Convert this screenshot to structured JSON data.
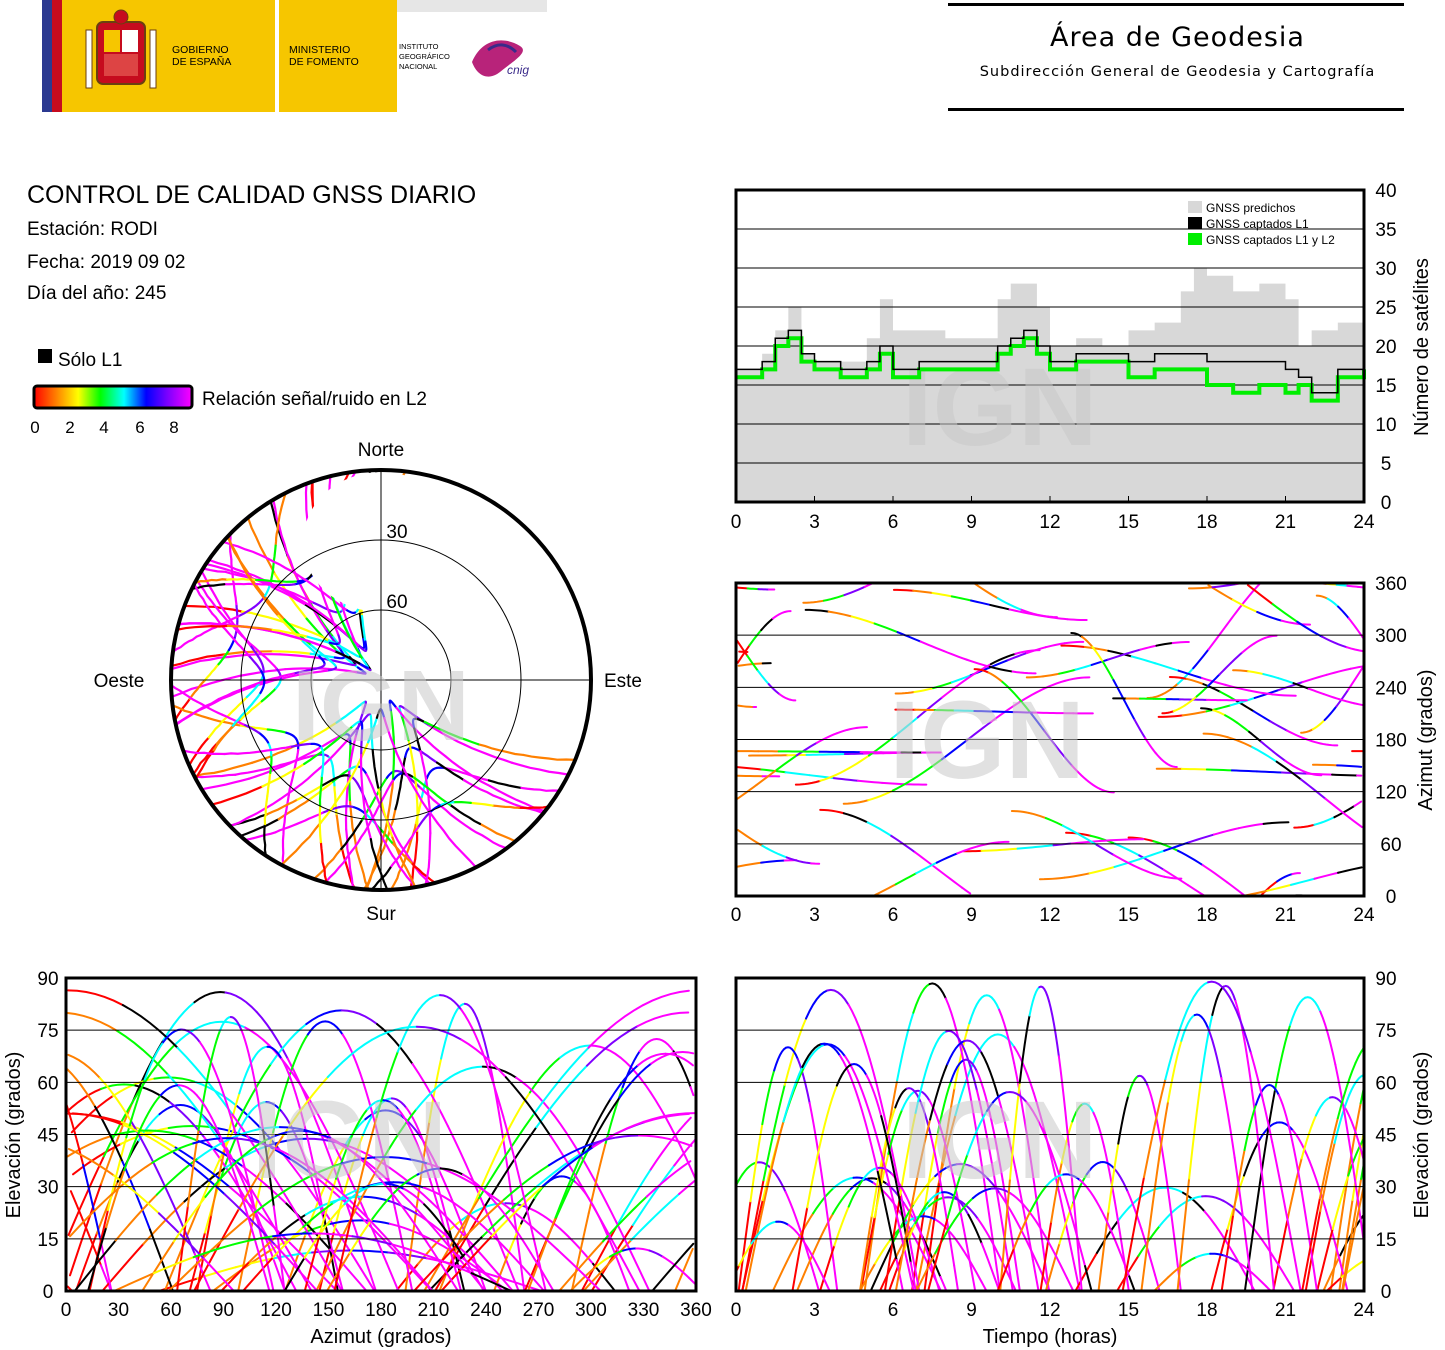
{
  "header": {
    "gobierno": [
      "GOBIERNO",
      "DE ESPAÑA"
    ],
    "ministerio": [
      "MINISTERIO",
      "DE FOMENTO"
    ],
    "instituto": [
      "INSTITUTO",
      "GEOGRÁFICO",
      "NACIONAL"
    ],
    "cnig": "cnig",
    "area_title": "Área de Geodesia",
    "area_subtitle": "Subdirección General de Geodesia y Cartografía"
  },
  "info": {
    "title": "CONTROL DE CALIDAD GNSS DIARIO",
    "station": "Estación: RODI",
    "date": "Fecha: 2019 09 02",
    "doy": "Día del año: 245"
  },
  "legend": {
    "l1_only": "Sólo L1",
    "snr_label": "Relación señal/ruido en L2",
    "snr_ticks": [
      "0",
      "2",
      "4",
      "6",
      "8"
    ],
    "colors": {
      "l1_only": "#000000",
      "snr_gradient": [
        "#ff0000",
        "#ff8000",
        "#ffff00",
        "#00ff00",
        "#00ffff",
        "#0000ff",
        "#8000ff",
        "#ff00ff"
      ]
    }
  },
  "watermark": "IGN",
  "chart_data": [
    {
      "id": "satellites",
      "type": "area",
      "ylabel": "Número de satélites",
      "x_ticks": [
        "0",
        "3",
        "6",
        "9",
        "12",
        "15",
        "18",
        "21",
        "24"
      ],
      "y_ticks": [
        "0",
        "5",
        "10",
        "15",
        "20",
        "25",
        "30",
        "35",
        "40"
      ],
      "xlim": [
        0,
        24
      ],
      "ylim": [
        0,
        40
      ],
      "legend": [
        "GNSS predichos",
        "GNSS captados L1",
        "GNSS captados L1 y L2"
      ],
      "colors": {
        "predicted": "#d8d8d8",
        "l1": "#000000",
        "l1l2": "#00ee00"
      },
      "series": [
        {
          "name": "GNSS predichos",
          "x": [
            0,
            1,
            1.5,
            2,
            2.5,
            3,
            4,
            5,
            5.5,
            6,
            7,
            8,
            9,
            10,
            10.5,
            11,
            11.5,
            12,
            13,
            14,
            15,
            16,
            17,
            17.5,
            18,
            19,
            20,
            21,
            21.5,
            22,
            23,
            24
          ],
          "values": [
            17,
            19,
            22,
            25,
            19,
            18,
            18,
            21,
            26,
            22,
            22,
            21,
            21,
            26,
            28,
            28,
            25,
            20,
            21,
            20,
            22,
            23,
            27,
            30,
            29,
            27,
            28,
            26,
            20,
            22,
            23,
            21
          ]
        },
        {
          "name": "GNSS captados L1",
          "x": [
            0,
            1,
            1.5,
            2,
            2.5,
            3,
            4,
            5,
            5.5,
            6,
            7,
            8,
            9,
            10,
            10.5,
            11,
            11.5,
            12,
            13,
            14,
            15,
            16,
            17,
            17.5,
            18,
            19,
            20,
            21,
            21.5,
            22,
            23,
            24
          ],
          "values": [
            17,
            18,
            21,
            22,
            19,
            18,
            17,
            18,
            20,
            17,
            18,
            18,
            18,
            20,
            21,
            22,
            20,
            18,
            19,
            19,
            18,
            19,
            19,
            19,
            18,
            18,
            18,
            17,
            16,
            14,
            17,
            18
          ]
        },
        {
          "name": "GNSS captados L1 y L2",
          "x": [
            0,
            1,
            1.5,
            2,
            2.5,
            3,
            4,
            5,
            5.5,
            6,
            7,
            8,
            9,
            10,
            10.5,
            11,
            11.5,
            12,
            13,
            14,
            15,
            16,
            17,
            17.5,
            18,
            19,
            20,
            21,
            21.5,
            22,
            23,
            24
          ],
          "values": [
            16,
            17,
            20,
            21,
            18,
            17,
            16,
            17,
            19,
            16,
            17,
            17,
            17,
            19,
            20,
            21,
            19,
            17,
            18,
            18,
            16,
            17,
            17,
            17,
            15,
            14,
            15,
            14,
            15,
            13,
            16,
            17
          ]
        }
      ]
    },
    {
      "id": "azimuth-time",
      "type": "scatter",
      "ylabel": "Azimut (grados)",
      "x_ticks": [
        "0",
        "3",
        "6",
        "9",
        "12",
        "15",
        "18",
        "21",
        "24"
      ],
      "y_ticks": [
        "0",
        "60",
        "120",
        "180",
        "240",
        "300",
        "360"
      ],
      "xlim": [
        0,
        24
      ],
      "ylim": [
        0,
        360
      ]
    },
    {
      "id": "skyplot",
      "type": "scatter",
      "labels": {
        "n": "Norte",
        "s": "Sur",
        "e": "Este",
        "w": "Oeste"
      },
      "ring_labels": [
        "30",
        "60"
      ]
    },
    {
      "id": "elevation-azimuth",
      "type": "scatter",
      "xlabel": "Azimut (grados)",
      "ylabel": "Elevación (grados)",
      "x_ticks": [
        "0",
        "30",
        "60",
        "90",
        "120",
        "150",
        "180",
        "210",
        "240",
        "270",
        "300",
        "330",
        "360"
      ],
      "y_ticks": [
        "0",
        "15",
        "30",
        "45",
        "60",
        "75",
        "90"
      ],
      "xlim": [
        0,
        360
      ],
      "ylim": [
        0,
        90
      ]
    },
    {
      "id": "elevation-time",
      "type": "scatter",
      "xlabel": "Tiempo (horas)",
      "ylabel": "Elevación (grados)",
      "x_ticks": [
        "0",
        "3",
        "6",
        "9",
        "12",
        "15",
        "18",
        "21",
        "24"
      ],
      "y_ticks": [
        "0",
        "15",
        "30",
        "45",
        "60",
        "75",
        "90"
      ],
      "xlim": [
        0,
        24
      ],
      "ylim": [
        0,
        90
      ]
    }
  ]
}
